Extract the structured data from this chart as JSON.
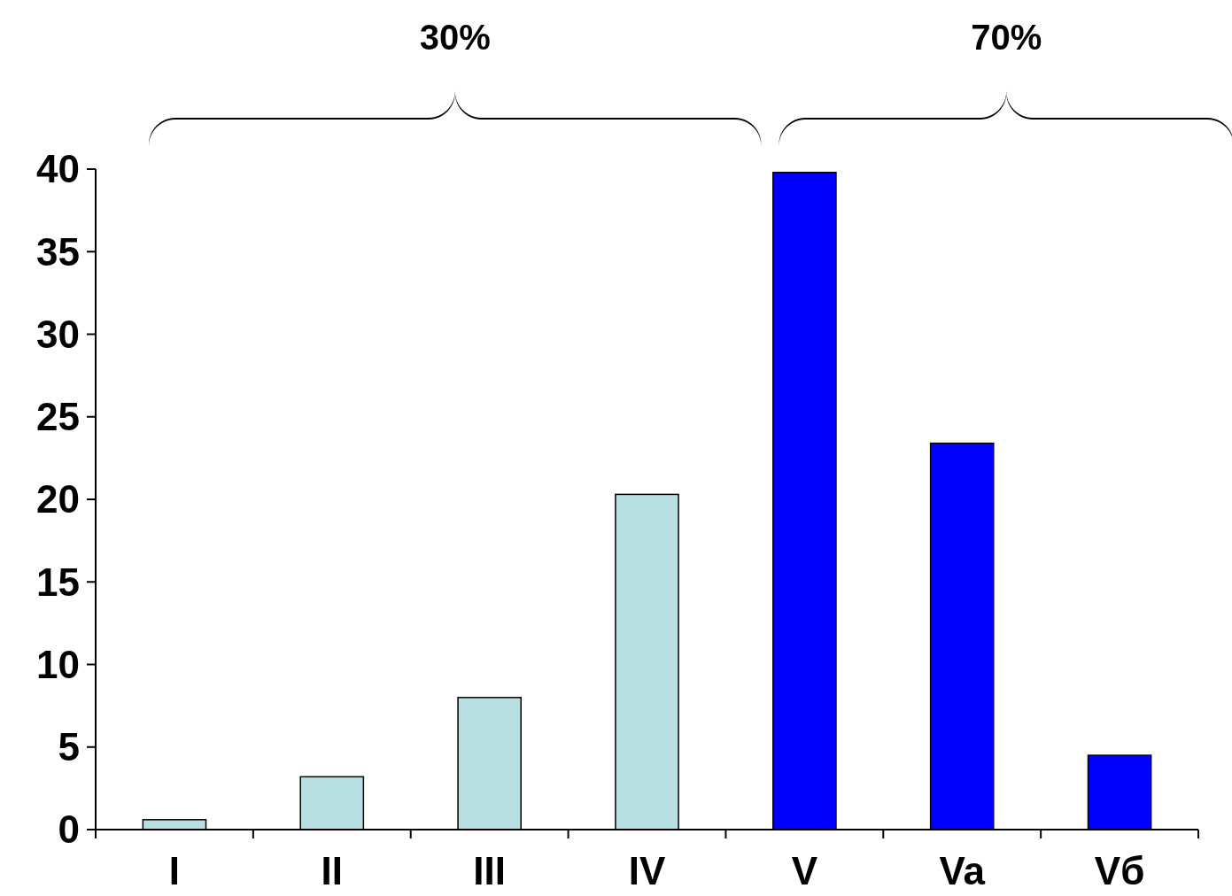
{
  "chart_data": {
    "type": "bar",
    "categories": [
      "I",
      "II",
      "III",
      "IV",
      "V",
      "Va",
      "Vб"
    ],
    "values": [
      0.6,
      3.2,
      8.0,
      20.3,
      39.8,
      23.4,
      4.5
    ],
    "colors": [
      "#b8e0e3",
      "#b8e0e3",
      "#b8e0e3",
      "#b8e0e3",
      "#0000ff",
      "#0000ff",
      "#0000ff"
    ],
    "ylim": [
      0,
      40
    ],
    "yticks": [
      0,
      5,
      10,
      15,
      20,
      25,
      30,
      35,
      40
    ],
    "grid": false,
    "annotations": [
      "30%",
      "70%"
    ]
  }
}
